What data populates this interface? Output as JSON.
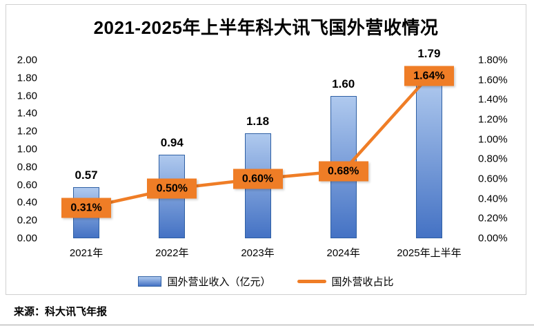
{
  "title": "2021-2025年上半年科大讯飞国外营收情况",
  "source": "来源：科大讯飞年报",
  "legend": {
    "bar_label": "国外营业收入（亿元）",
    "line_label": "国外营收占比"
  },
  "colors": {
    "bar_gradient_top": "#AFC9EE",
    "bar_gradient_bottom": "#4472C4",
    "bar_border": "#2E5FA3",
    "line": "#EF7D26",
    "chart_border": "#D0D0D0"
  },
  "chart_data": {
    "type": "bar+line",
    "title": "2021-2025年上半年科大讯飞国外营收情况",
    "categories": [
      "2021年",
      "2022年",
      "2023年",
      "2024年",
      "2025年上半年"
    ],
    "series": [
      {
        "name": "国外营业收入（亿元）",
        "type": "bar",
        "axis": "left",
        "values": [
          0.57,
          0.94,
          1.18,
          1.6,
          1.79
        ],
        "labels": [
          "0.57",
          "0.94",
          "1.18",
          "1.60",
          "1.79"
        ]
      },
      {
        "name": "国外营收占比",
        "type": "line",
        "axis": "right",
        "unit": "%",
        "values": [
          0.31,
          0.5,
          0.6,
          0.68,
          1.64
        ],
        "labels": [
          "0.31%",
          "0.50%",
          "0.60%",
          "0.68%",
          "1.64%"
        ]
      }
    ],
    "left_axis": {
      "min": 0.0,
      "max": 2.0,
      "step": 0.2,
      "ticks": [
        "2.00",
        "1.80",
        "1.60",
        "1.40",
        "1.20",
        "1.00",
        "0.80",
        "0.60",
        "0.40",
        "0.20",
        "0.00"
      ]
    },
    "right_axis": {
      "min": 0.0,
      "max": 1.8,
      "step": 0.2,
      "unit": "%",
      "ticks": [
        "1.80%",
        "1.60%",
        "1.40%",
        "1.20%",
        "1.00%",
        "0.80%",
        "0.60%",
        "0.40%",
        "0.20%",
        "0.00%"
      ]
    },
    "grid": false,
    "legend_position": "bottom"
  }
}
